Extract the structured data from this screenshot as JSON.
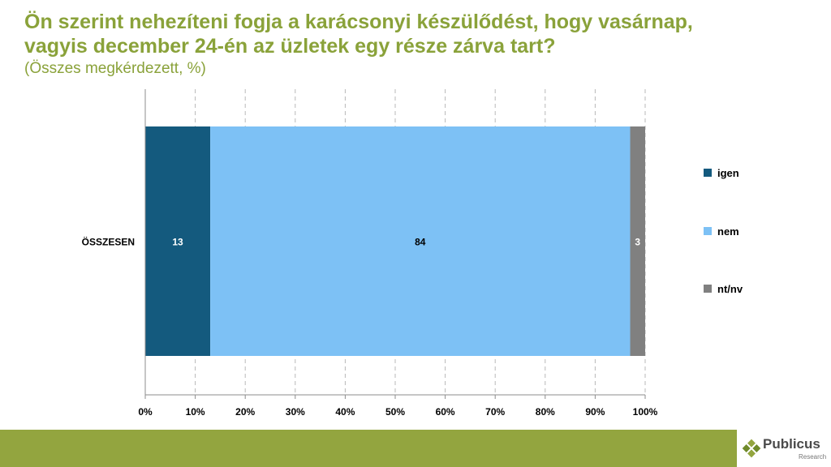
{
  "title": {
    "line1": "Ön szerint nehezíteni fogja a karácsonyi készülődést, hogy vasárnap,",
    "line2": "vagyis december 24-én az üzletek egy része zárva tart?",
    "subtitle": "(Összes megkérdezett, %)"
  },
  "chart_data": {
    "type": "bar",
    "orientation": "horizontal",
    "stacked": true,
    "categories": [
      "ÖSSZESEN"
    ],
    "series": [
      {
        "name": "igen",
        "values": [
          13
        ],
        "color": "#145a7e",
        "label_color": "#ffffff"
      },
      {
        "name": "nem",
        "values": [
          84
        ],
        "color": "#7dc1f5",
        "label_color": "#000000"
      },
      {
        "name": "nt/nv",
        "values": [
          3
        ],
        "color": "#808080",
        "label_color": "#ffffff"
      }
    ],
    "xlim": [
      0,
      100
    ],
    "xticks": [
      "0%",
      "10%",
      "20%",
      "30%",
      "40%",
      "50%",
      "60%",
      "70%",
      "80%",
      "90%",
      "100%"
    ],
    "grid": "vertical dashed",
    "legend_position": "right"
  },
  "footer": {
    "logo_name": "Publicus",
    "logo_sub": "Research",
    "bar_color": "#93a53f"
  }
}
